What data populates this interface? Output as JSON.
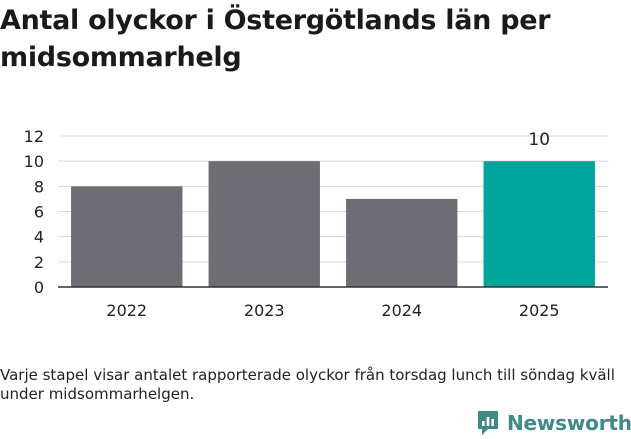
{
  "header": {
    "title": "Antal olyckor i Östergötlands län per midsommarhelg"
  },
  "footer": {
    "note": "Varje stapel visar antalet rapporterade olyckor från torsdag lunch till söndag kväll under midsommarhelgen.",
    "brand": "Newsworthy"
  },
  "colors": {
    "bar": "#6f6d74",
    "highlight": "#00a49a",
    "grid": "#d8d8d8",
    "axis": "#333333",
    "brand": "#3d8b84"
  },
  "chart_data": {
    "type": "bar",
    "title": "Antal olyckor i Östergötlands län per midsommarhelg",
    "xlabel": "",
    "ylabel": "",
    "categories": [
      "2022",
      "2023",
      "2024",
      "2025"
    ],
    "values": [
      8,
      10,
      7,
      10
    ],
    "highlight_index": 3,
    "data_labels": {
      "2025": "10"
    },
    "ylim": [
      0,
      12
    ],
    "yticks": [
      0,
      2,
      4,
      6,
      8,
      10,
      12
    ],
    "grid": true,
    "legend": "none"
  }
}
